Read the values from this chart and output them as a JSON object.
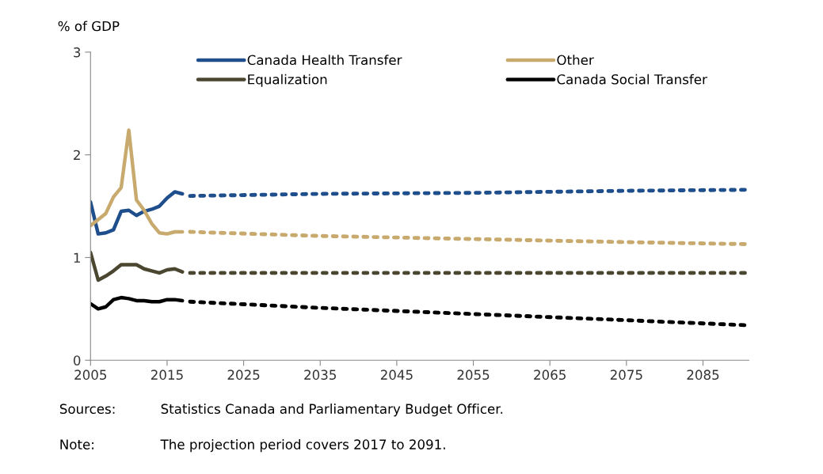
{
  "chart_data": {
    "type": "line",
    "ylabel": "% of GDP",
    "xlim": [
      2005,
      2091
    ],
    "xticks": [
      2005,
      2015,
      2025,
      2035,
      2045,
      2055,
      2065,
      2075,
      2085
    ],
    "ylim": [
      0,
      3
    ],
    "yticks": [
      0,
      1,
      2,
      3
    ],
    "grid": false,
    "legend": "top",
    "marker": "none",
    "series": [
      {
        "name": "Canada Health Transfer",
        "color": "#1f4e8c",
        "line_style": "solid",
        "x": [
          2005,
          2006,
          2007,
          2008,
          2009,
          2010,
          2011,
          2012,
          2013,
          2014,
          2015,
          2016,
          2017
        ],
        "values": [
          1.54,
          1.23,
          1.24,
          1.27,
          1.45,
          1.46,
          1.41,
          1.45,
          1.47,
          1.5,
          1.58,
          1.64,
          1.62
        ]
      },
      {
        "name": "Equalization",
        "color": "#4a4630",
        "line_style": "solid",
        "x": [
          2005,
          2006,
          2007,
          2008,
          2009,
          2010,
          2011,
          2012,
          2013,
          2014,
          2015,
          2016,
          2017
        ],
        "values": [
          1.05,
          0.78,
          0.82,
          0.87,
          0.93,
          0.93,
          0.93,
          0.89,
          0.87,
          0.85,
          0.88,
          0.89,
          0.86
        ]
      },
      {
        "name": "Other",
        "color": "#c8aa6e",
        "line_style": "solid",
        "x": [
          2005,
          2006,
          2007,
          2008,
          2009,
          2010,
          2011,
          2012,
          2013,
          2014,
          2015,
          2016,
          2017
        ],
        "values": [
          1.31,
          1.37,
          1.43,
          1.59,
          1.68,
          2.24,
          1.56,
          1.46,
          1.33,
          1.24,
          1.23,
          1.25,
          1.25
        ]
      },
      {
        "name": "Canada Social Transfer",
        "color": "#000000",
        "line_style": "solid",
        "x": [
          2005,
          2006,
          2007,
          2008,
          2009,
          2010,
          2011,
          2012,
          2013,
          2014,
          2015,
          2016,
          2017
        ],
        "values": [
          0.55,
          0.5,
          0.52,
          0.59,
          0.61,
          0.6,
          0.58,
          0.58,
          0.57,
          0.57,
          0.59,
          0.59,
          0.58
        ]
      },
      {
        "color": "#1f4e8c",
        "line_style": "dotted",
        "x": [
          2018,
          2035,
          2055,
          2075,
          2091
        ],
        "values": [
          1.6,
          1.62,
          1.63,
          1.65,
          1.66
        ]
      },
      {
        "color": "#4a4630",
        "line_style": "dotted",
        "x": [
          2018,
          2035,
          2055,
          2075,
          2091
        ],
        "values": [
          0.85,
          0.85,
          0.85,
          0.85,
          0.85
        ]
      },
      {
        "color": "#c8aa6e",
        "line_style": "dotted",
        "x": [
          2018,
          2035,
          2055,
          2075,
          2091
        ],
        "values": [
          1.25,
          1.21,
          1.18,
          1.15,
          1.13
        ]
      },
      {
        "color": "#000000",
        "line_style": "dotted",
        "x": [
          2018,
          2035,
          2055,
          2075,
          2091
        ],
        "values": [
          0.57,
          0.51,
          0.45,
          0.39,
          0.34
        ]
      }
    ],
    "annotations": [
      "Sources:\tStatistics Canada and Parliamentary Budget Officer.",
      "Note:\tThe projection period covers 2017 to 2091."
    ]
  }
}
